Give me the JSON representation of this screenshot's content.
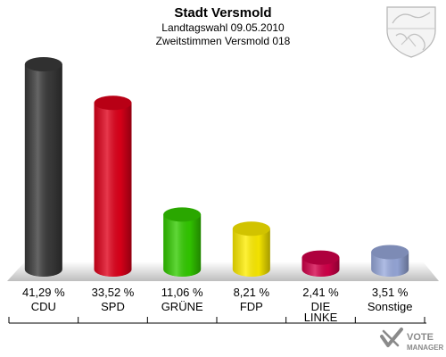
{
  "chart_data": {
    "type": "bar",
    "title": "Stadt Versmold",
    "subtitle_1": "Landtagswahl 09.05.2010",
    "subtitle_2": "Zweitstimmen Versmold 018",
    "categories": [
      "CDU",
      "SPD",
      "GRÜNE",
      "FDP",
      "DIE LINKE",
      "Sonstige"
    ],
    "category_lines": [
      [
        "CDU"
      ],
      [
        "SPD"
      ],
      [
        "GRÜNE"
      ],
      [
        "FDP"
      ],
      [
        "DIE",
        "LINKE"
      ],
      [
        "Sonstige"
      ]
    ],
    "values": [
      41.29,
      33.52,
      11.06,
      8.21,
      2.41,
      3.51
    ],
    "value_labels": [
      "41,29 %",
      "33,52 %",
      "11,06 %",
      "8,21 %",
      "2,41 %",
      "3,51 %"
    ],
    "colors": [
      "#3a3a3a",
      "#e0001a",
      "#33cc00",
      "#ffee00",
      "#d4004a",
      "#99aadd"
    ],
    "ylim": [
      0,
      45
    ],
    "grid": false,
    "legend": "none"
  },
  "watermark": {
    "line1": "VOTE",
    "line2": "MANAGER"
  },
  "coat_of_arms_icon": "nrw-coat-of-arms-icon"
}
